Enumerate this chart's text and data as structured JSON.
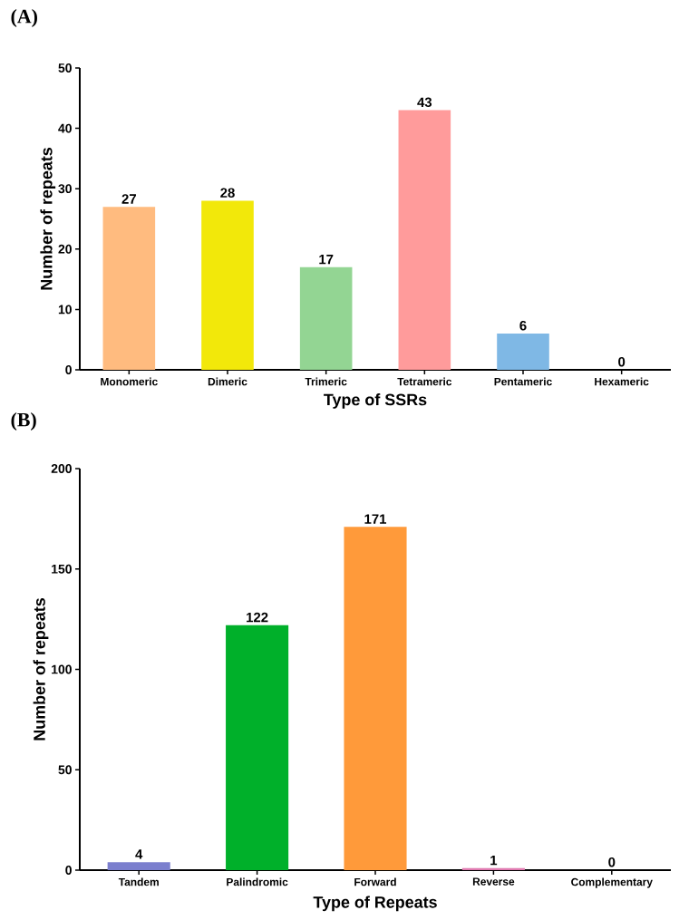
{
  "chart_data": [
    {
      "type": "bar",
      "title": "(A)",
      "xlabel": "Type of SSRs",
      "ylabel": "Number of repeats",
      "categories": [
        "Monomeric",
        "Dimeric",
        "Trimeric",
        "Tetrameric",
        "Pentameric",
        "Hexameric"
      ],
      "values": [
        27,
        28,
        17,
        43,
        6,
        0
      ],
      "colors": [
        "#ffbb7f",
        "#f2e80a",
        "#93d593",
        "#ff9b9b",
        "#7fb8e5",
        "#c0a0e0"
      ],
      "ylim": [
        0,
        50
      ],
      "yticks": [
        0,
        10,
        20,
        30,
        40,
        50
      ],
      "data_labels": true
    },
    {
      "type": "bar",
      "title": "(B)",
      "xlabel": "Type of Repeats",
      "ylabel": "Number of repeats",
      "categories": [
        "Tandem",
        "Palindromic",
        "Forward",
        "Reverse",
        "Complementary"
      ],
      "values": [
        4,
        122,
        171,
        1,
        0
      ],
      "colors": [
        "#7b7fce",
        "#00b02a",
        "#ff9a3a",
        "#e07ab0",
        "#a0a0a0"
      ],
      "ylim": [
        0,
        200
      ],
      "yticks": [
        0,
        50,
        100,
        150,
        200
      ],
      "data_labels": true
    }
  ]
}
